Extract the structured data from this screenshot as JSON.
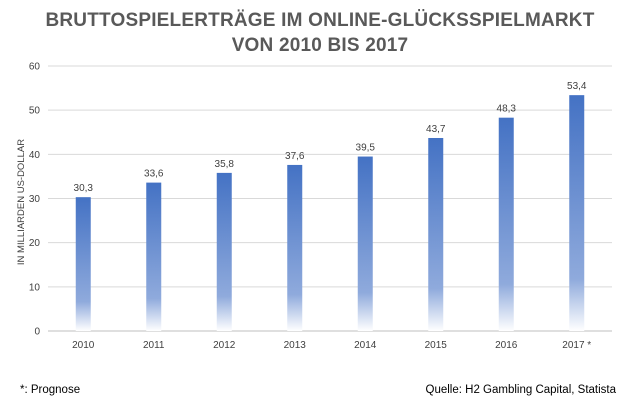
{
  "chart_data": {
    "type": "bar",
    "title_lines": [
      "BRUTTOSPIELERTRÄGE IM ONLINE-GLÜCKSSPIELMARKT",
      "VON 2010 BIS 2017"
    ],
    "ylabel": "IN MILLIARDEN US-DOLLAR",
    "xlabel": "",
    "categories": [
      "2010",
      "2011",
      "2012",
      "2013",
      "2014",
      "2015",
      "2016",
      "2017 *"
    ],
    "values": [
      30.3,
      33.6,
      35.8,
      37.6,
      39.5,
      43.7,
      48.3,
      53.4
    ],
    "data_labels": [
      "30,3",
      "33,6",
      "35,8",
      "37,6",
      "39,5",
      "43,7",
      "48,3",
      "53,4"
    ],
    "ylim": [
      0,
      60
    ],
    "yticks": [
      0,
      10,
      20,
      30,
      40,
      50,
      60
    ],
    "grid": true,
    "legend": "none",
    "bar_color_top": "#4472C4",
    "bar_color_bottom": "#ffffff"
  },
  "footer": {
    "note": "*: Prognose",
    "source": "Quelle: H2 Gambling Capital, Statista"
  }
}
